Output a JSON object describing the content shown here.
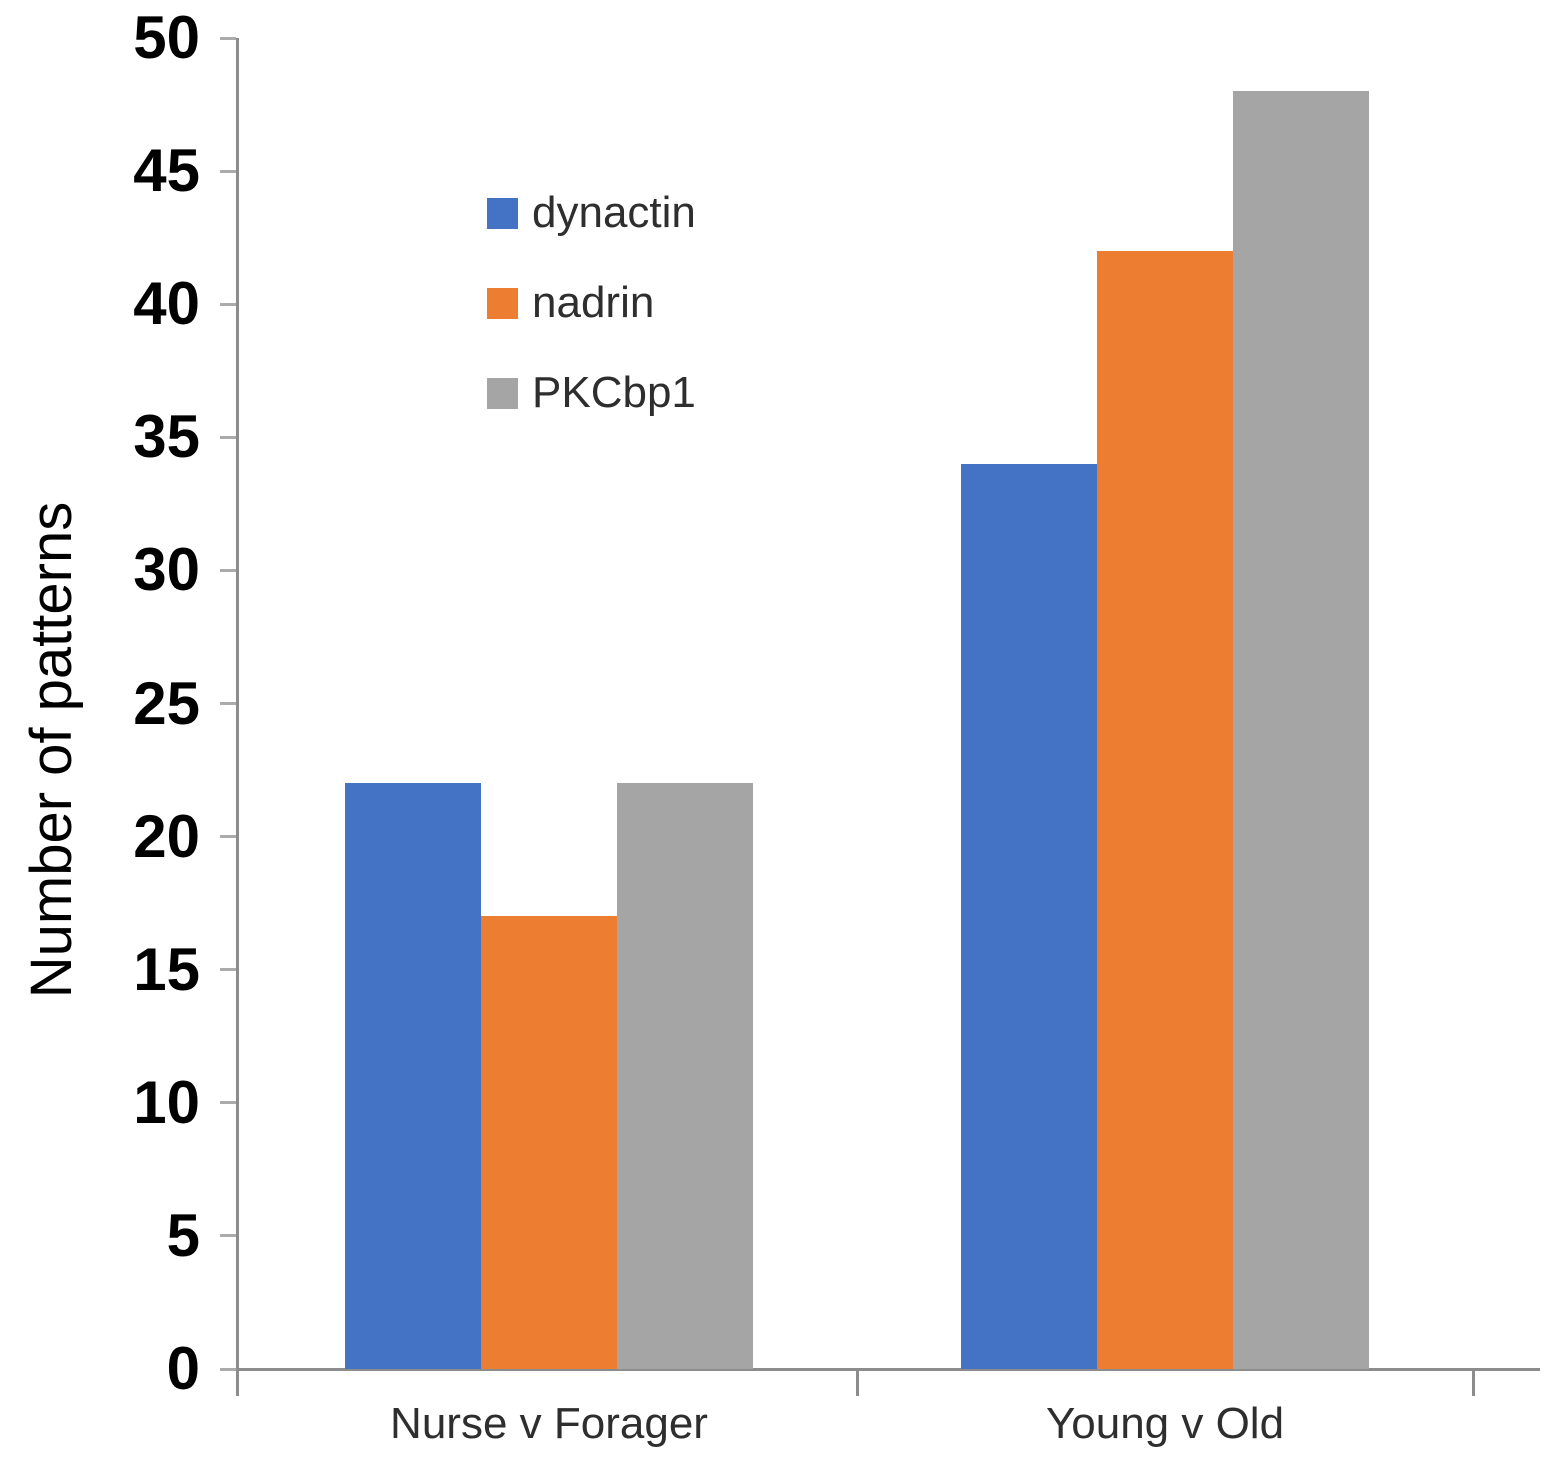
{
  "chart_data": {
    "type": "bar",
    "title": "",
    "xlabel": "",
    "ylabel": "Number of patterns",
    "ylim": [
      0,
      50
    ],
    "yticks": [
      0,
      5,
      10,
      15,
      20,
      25,
      30,
      35,
      40,
      45,
      50
    ],
    "categories": [
      "Nurse v Forager",
      "Young v Old"
    ],
    "series": [
      {
        "name": "dynactin",
        "color": "#4472C4",
        "values": [
          22,
          34
        ]
      },
      {
        "name": "nadrin",
        "color": "#ED7D31",
        "values": [
          17,
          42
        ]
      },
      {
        "name": "PKCbp1",
        "color": "#A5A5A5",
        "values": [
          22,
          48
        ]
      }
    ],
    "legend_position": "upper-left-inside",
    "grid": false
  },
  "colors": {
    "axis_line": "#8c8c8c",
    "tick_mark": "#ababab",
    "tick_label": "#000000",
    "category_label": "#2e2e2e",
    "legend_label": "#2e2e2e",
    "background": "#ffffff"
  }
}
